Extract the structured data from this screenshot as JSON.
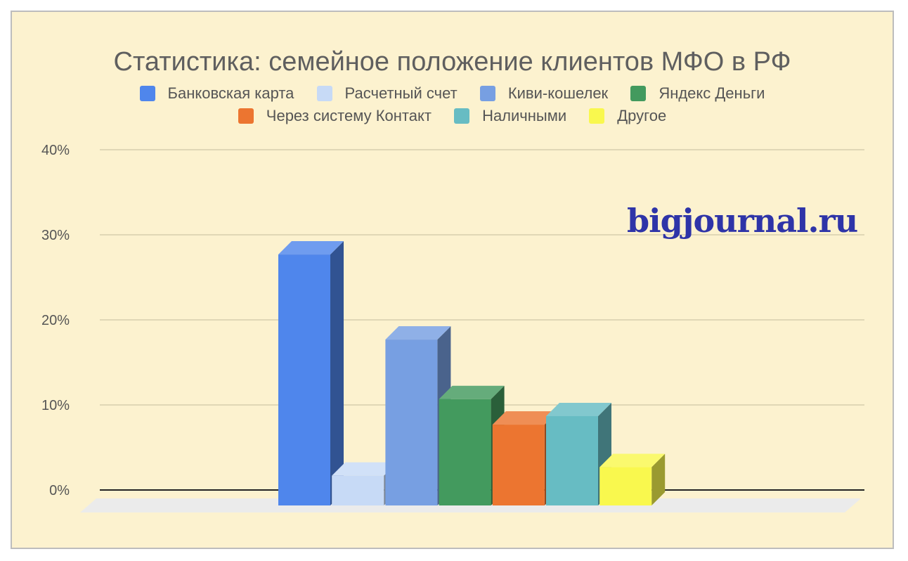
{
  "chart_data": {
    "type": "bar",
    "title": "Статистика: семейное положение клиентов МФО в РФ",
    "xlabel": "",
    "ylabel": "",
    "ylim": [
      0,
      40
    ],
    "yticks": [
      "0%",
      "10%",
      "20%",
      "30%",
      "40%"
    ],
    "grid": true,
    "legend_position": "top",
    "three_d": true,
    "series": [
      {
        "name": "Банковская карта",
        "value": 29.5,
        "color": "#4f86ec"
      },
      {
        "name": "Расчетный счет",
        "value": 3.5,
        "color": "#c7daf6"
      },
      {
        "name": "Киви-кошелек",
        "value": 19.5,
        "color": "#779fe2"
      },
      {
        "name": "Яндекс Деньги",
        "value": 12.5,
        "color": "#439a5e"
      },
      {
        "name": "Через систему Контакт",
        "value": 9.5,
        "color": "#ec7530"
      },
      {
        "name": "Наличными",
        "value": 10.5,
        "color": "#67bcc3"
      },
      {
        "name": "Другое",
        "value": 4.5,
        "color": "#f9f84e"
      }
    ]
  },
  "watermark": "bigjournal.ru"
}
